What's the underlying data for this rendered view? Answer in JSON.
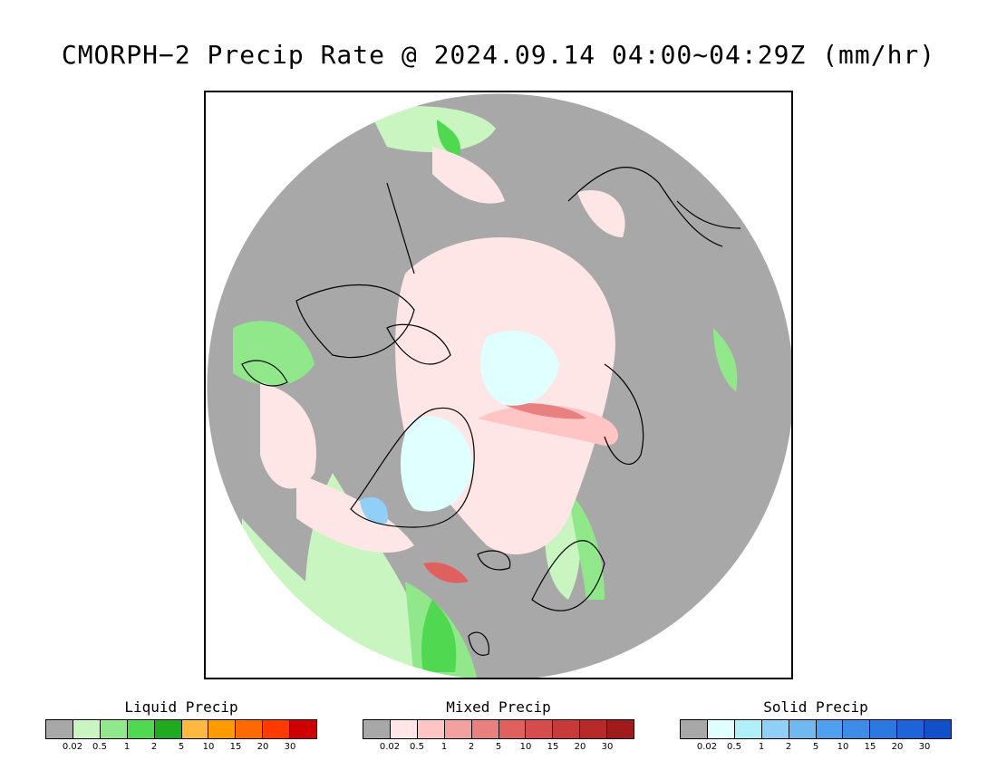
{
  "title": "CMORPH−2 Precip Rate @ 2024.09.14 04:00~04:29Z (mm/hr)",
  "map": {
    "type": "polar-stereographic-north",
    "background_color": "#a8a8a8",
    "layers": [
      "land-outline",
      "light-precip",
      "mixed-precip",
      "solid-precip"
    ]
  },
  "legends": [
    {
      "title": "Liquid Precip",
      "colors": [
        "#a8a8a8",
        "#c8f5c0",
        "#90e88a",
        "#50d850",
        "#20aa20",
        "#ffb840",
        "#ff9a00",
        "#ff6a00",
        "#ff3a00",
        "#d00000"
      ],
      "ticks": [
        "0.02",
        "0.5",
        "1",
        "2",
        "5",
        "10",
        "15",
        "20",
        "30"
      ]
    },
    {
      "title": "Mixed Precip",
      "colors": [
        "#a8a8a8",
        "#ffe6e6",
        "#ffc4c4",
        "#f2a0a0",
        "#e88080",
        "#e06060",
        "#d44c4c",
        "#c83a3a",
        "#b82a2a",
        "#a01c1c"
      ],
      "ticks": [
        "0.02",
        "0.5",
        "1",
        "2",
        "5",
        "10",
        "15",
        "20",
        "30"
      ]
    },
    {
      "title": "Solid Precip",
      "colors": [
        "#a8a8a8",
        "#e0ffff",
        "#b0f0f8",
        "#90d0f8",
        "#70b8f0",
        "#50a0f0",
        "#3c8ce8",
        "#2a78e0",
        "#1c64d8",
        "#1050c8"
      ],
      "ticks": [
        "0.02",
        "0.5",
        "1",
        "2",
        "5",
        "10",
        "15",
        "20",
        "30"
      ]
    }
  ]
}
